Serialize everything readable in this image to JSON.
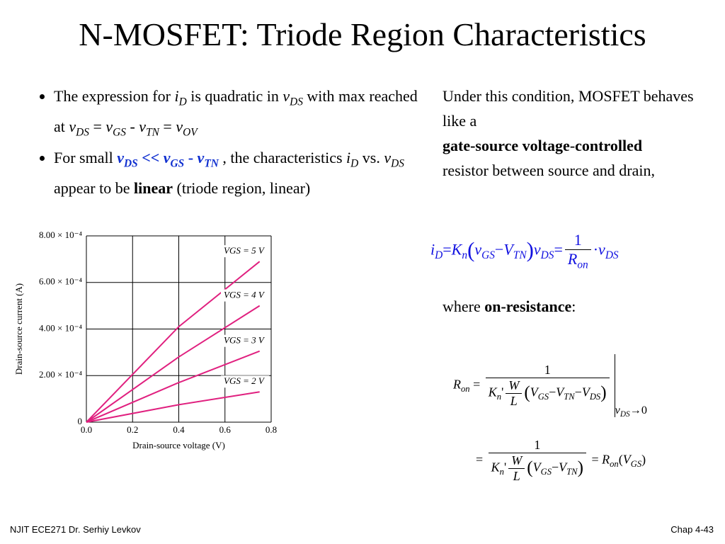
{
  "title": "N-MOSFET: Triode Region Characteristics",
  "bullets": [
    [
      {
        "t": "The expression  for "
      },
      {
        "t": "i",
        "s": "it"
      },
      {
        "t": "D",
        "s": "it sub"
      },
      {
        "t": " is quadratic in "
      },
      {
        "t": "v",
        "s": "it"
      },
      {
        "t": "DS",
        "s": "it sub"
      },
      {
        "t": " with max reached at "
      },
      {
        "t": "v",
        "s": "it"
      },
      {
        "t": "DS",
        "s": "it sub"
      },
      {
        "t": " = "
      },
      {
        "t": "v",
        "s": "it"
      },
      {
        "t": "GS",
        "s": "it sub"
      },
      {
        "t": " - "
      },
      {
        "t": "v",
        "s": "it"
      },
      {
        "t": "TN",
        "s": "it sub"
      },
      {
        "t": " = "
      },
      {
        "t": "v",
        "s": "it"
      },
      {
        "t": "OV",
        "s": "it sub"
      }
    ],
    [
      {
        "t": "For small "
      },
      {
        "t": "v",
        "s": "it b blue"
      },
      {
        "t": "DS",
        "s": "it b blue sub"
      },
      {
        "t": " << ",
        "s": "b blue"
      },
      {
        "t": "v",
        "s": "it b blue"
      },
      {
        "t": "GS",
        "s": "it b blue sub"
      },
      {
        "t": " - ",
        "s": "b blue"
      },
      {
        "t": "v",
        "s": "it b blue"
      },
      {
        "t": "TN",
        "s": "it b blue sub"
      },
      {
        "t": " , the characteristics "
      },
      {
        "t": "i",
        "s": "it"
      },
      {
        "t": "D",
        "s": "it sub"
      },
      {
        "t": " vs. "
      },
      {
        "t": "v",
        "s": "it"
      },
      {
        "t": "DS",
        "s": "it sub"
      },
      {
        "t": "  appear to be "
      },
      {
        "t": "linear",
        "s": "b"
      },
      {
        "t": "  (triode region, linear)"
      }
    ]
  ],
  "info": [
    [
      {
        "t": "Under this condition, MOSFET behaves like a"
      }
    ],
    [
      {
        "t": "gate-source voltage",
        "s": "b"
      },
      {
        "t": "-"
      },
      {
        "t": "controlled",
        "s": "b"
      }
    ],
    [
      {
        "t": "resistor between source and drain,"
      }
    ]
  ],
  "where": [
    {
      "t": "where "
    },
    {
      "t": "on-resistance",
      "s": "b"
    },
    {
      "t": ":"
    }
  ],
  "equations": [
    [
      {
        "t": "i",
        "s": "it"
      },
      {
        "t": "D",
        "s": "it sub"
      },
      {
        "t": "="
      },
      {
        "t": "K",
        "s": "it"
      },
      {
        "t": "n",
        "s": "it sub"
      },
      {
        "t": "(",
        "s": "big"
      },
      {
        "t": "v",
        "s": "it"
      },
      {
        "t": "GS",
        "s": "it sub"
      },
      {
        "t": "−"
      },
      {
        "t": "V",
        "s": "it"
      },
      {
        "t": "TN",
        "s": "it sub"
      },
      {
        "t": ")",
        "s": "big"
      },
      {
        "t": "v",
        "s": "it"
      },
      {
        "t": "DS",
        "s": "it sub"
      },
      {
        "t": "="
      },
      {
        "num": [
          {
            "t": "1"
          }
        ],
        "den": [
          {
            "t": "R",
            "s": "it"
          },
          {
            "t": "on",
            "s": "it sub"
          }
        ]
      },
      {
        "t": "·"
      },
      {
        "t": "v",
        "s": "it"
      },
      {
        "t": "DS",
        "s": "it sub"
      }
    ],
    [
      {
        "t": "R",
        "s": "it"
      },
      {
        "t": "on",
        "s": "it sub"
      },
      {
        "t": " = "
      },
      {
        "bar": [
          {
            "num": [
              {
                "t": "1"
              }
            ],
            "den": [
              {
                "t": "K",
                "s": "it"
              },
              {
                "t": "n",
                "s": "it sub"
              },
              {
                "t": "'"
              },
              {
                "num": [
                  {
                    "t": "W",
                    "s": "it"
                  }
                ],
                "den": [
                  {
                    "t": "L",
                    "s": "it"
                  }
                ]
              },
              {
                "t": "(",
                "s": "big"
              },
              {
                "t": "V",
                "s": "it"
              },
              {
                "t": "GS",
                "s": "it sub"
              },
              {
                "t": "−"
              },
              {
                "t": "V",
                "s": "it"
              },
              {
                "t": "TN",
                "s": "it sub"
              },
              {
                "t": "−"
              },
              {
                "t": "V",
                "s": "it"
              },
              {
                "t": "DS",
                "s": "it sub"
              },
              {
                "t": ")",
                "s": "big"
              }
            ]
          }
        ],
        "at": [
          {
            "t": "v",
            "s": "it"
          },
          {
            "t": "DS",
            "s": "it sub"
          },
          {
            "t": "→0"
          }
        ]
      }
    ],
    [
      {
        "t": "= "
      },
      {
        "num": [
          {
            "t": "1"
          }
        ],
        "den": [
          {
            "t": "K",
            "s": "it"
          },
          {
            "t": "n",
            "s": "it sub"
          },
          {
            "t": "'"
          },
          {
            "num": [
              {
                "t": "W",
                "s": "it"
              }
            ],
            "den": [
              {
                "t": "L",
                "s": "it"
              }
            ]
          },
          {
            "t": "(",
            "s": "big"
          },
          {
            "t": "V",
            "s": "it"
          },
          {
            "t": "GS",
            "s": "it sub"
          },
          {
            "t": "−"
          },
          {
            "t": "V",
            "s": "it"
          },
          {
            "t": "TN",
            "s": "it sub"
          },
          {
            "t": ")",
            "s": "big"
          }
        ]
      },
      {
        "t": " = "
      },
      {
        "t": "R",
        "s": "it"
      },
      {
        "t": "on",
        "s": "it sub"
      },
      {
        "t": "("
      },
      {
        "t": "V",
        "s": "it"
      },
      {
        "t": "GS",
        "s": "it sub"
      },
      {
        "t": ")"
      }
    ]
  ],
  "chart_data": {
    "type": "line",
    "x_label": "Drain-source voltage (V)",
    "y_label": "Drain-source current (A)",
    "x": [
      0,
      0.4,
      0.75
    ],
    "series": [
      {
        "name": "VGS = 5 V",
        "color": "#e0207f",
        "values": [
          0,
          0.00041,
          0.00069
        ]
      },
      {
        "name": "VGS = 4 V",
        "color": "#e0207f",
        "values": [
          0,
          0.00028,
          0.0005
        ]
      },
      {
        "name": "VGS = 3 V",
        "color": "#e0207f",
        "values": [
          0,
          0.00017,
          0.000305
        ]
      },
      {
        "name": "VGS = 2 V",
        "color": "#e0207f",
        "values": [
          0,
          7.5e-05,
          0.00013
        ]
      }
    ],
    "xlim": [
      0,
      0.8
    ],
    "ylim": [
      0,
      0.0008
    ],
    "xticks": [
      {
        "value": 0,
        "label": "0.0"
      },
      0.2,
      0.4,
      0.6,
      0.8
    ],
    "yticks": [
      0,
      {
        "value": 0.0002,
        "label": "2.00 × 10⁻⁴"
      },
      {
        "value": 0.0004,
        "label": "4.00 × 10⁻⁴"
      },
      {
        "value": 0.0006,
        "label": "6.00 × 10⁻⁴"
      },
      {
        "value": 0.0008,
        "label": "8.00 × 10⁻⁴"
      }
    ],
    "grid": true
  },
  "footer": {
    "left": "NJIT  ECE271 Dr. Serhiy Levkov",
    "right": "Chap 4-43"
  }
}
